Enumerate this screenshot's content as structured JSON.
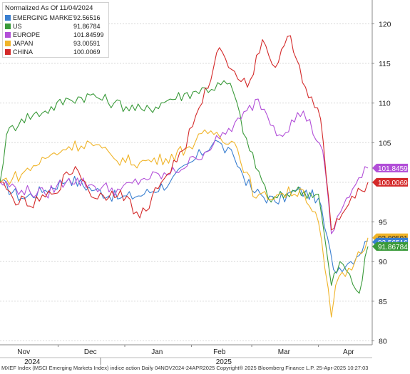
{
  "chart_data": {
    "type": "line",
    "title": "Normalized As Of 11/04/2024",
    "y_ticks": [
      "80",
      "85",
      "90",
      "95",
      "100",
      "105",
      "110",
      "115",
      "120"
    ],
    "ylim": [
      79.5,
      123
    ],
    "x_start": "2024-11-04",
    "x_end": "2025-04-24",
    "x_month_labels": [
      {
        "label": "Nov",
        "date": "2024-11-15"
      },
      {
        "label": "Dec",
        "date": "2024-12-16"
      },
      {
        "label": "Jan",
        "date": "2025-01-16"
      },
      {
        "label": "Feb",
        "date": "2025-02-14"
      },
      {
        "label": "Mar",
        "date": "2025-03-16"
      },
      {
        "label": "Apr",
        "date": "2025-04-15"
      }
    ],
    "x_year_labels": [
      {
        "label": "2024",
        "date": "2024-11-19"
      },
      {
        "label": "2025",
        "date": "2025-02-16"
      }
    ],
    "series": [
      {
        "name": "EMERGING MARKET",
        "legend_value": "92.56516",
        "color": "#3a7fd0",
        "x": [
          "2024-11-04",
          "2024-11-14",
          "2024-11-25",
          "2024-12-06",
          "2024-12-18",
          "2024-12-30",
          "2025-01-10",
          "2025-01-22",
          "2025-02-03",
          "2025-02-12",
          "2025-02-21",
          "2025-03-01",
          "2025-03-12",
          "2025-03-22",
          "2025-04-01",
          "2025-04-08",
          "2025-04-16",
          "2025-04-24"
        ],
        "values": [
          100,
          98,
          99,
          100.5,
          99,
          98,
          98.5,
          100,
          103,
          105.3,
          103,
          99,
          97.5,
          99,
          98,
          89,
          90,
          92.6
        ]
      },
      {
        "name": "US",
        "legend_value": "91.86784",
        "color": "#3a9a3a",
        "x": [
          "2024-11-04",
          "2024-11-07",
          "2024-11-14",
          "2024-11-25",
          "2024-12-06",
          "2024-12-16",
          "2024-12-27",
          "2025-01-10",
          "2025-01-22",
          "2025-02-03",
          "2025-02-19",
          "2025-02-28",
          "2025-03-10",
          "2025-03-20",
          "2025-04-01",
          "2025-04-07",
          "2025-04-11",
          "2025-04-20",
          "2025-04-24"
        ],
        "values": [
          100,
          106,
          108,
          109,
          110.5,
          111,
          110,
          109,
          110.5,
          111.5,
          112.5,
          104,
          97.5,
          99,
          98.5,
          87,
          90,
          86,
          91.9
        ]
      },
      {
        "name": "EUROPE",
        "legend_value": "101.84599",
        "color": "#b24fd8",
        "x": [
          "2024-11-04",
          "2024-11-14",
          "2024-11-25",
          "2024-12-06",
          "2024-12-18",
          "2024-12-30",
          "2025-01-10",
          "2025-01-22",
          "2025-02-03",
          "2025-02-14",
          "2025-02-24",
          "2025-03-04",
          "2025-03-14",
          "2025-03-25",
          "2025-04-03",
          "2025-04-07",
          "2025-04-14",
          "2025-04-24"
        ],
        "values": [
          100,
          99,
          98.5,
          100.5,
          99.5,
          99,
          100.5,
          101,
          103,
          105.5,
          108,
          110.5,
          106,
          109,
          104,
          93.5,
          98,
          101.8
        ]
      },
      {
        "name": "JAPAN",
        "legend_value": "93.00591",
        "color": "#f0b429",
        "x": [
          "2024-11-04",
          "2024-11-14",
          "2024-11-25",
          "2024-12-06",
          "2024-12-16",
          "2024-12-27",
          "2025-01-08",
          "2025-01-20",
          "2025-01-31",
          "2025-02-10",
          "2025-02-21",
          "2025-03-03",
          "2025-03-14",
          "2025-03-25",
          "2025-04-01",
          "2025-04-07",
          "2025-04-09",
          "2025-04-18",
          "2025-04-24"
        ],
        "values": [
          100,
          101,
          103,
          104.5,
          105,
          103,
          102.5,
          103,
          104.5,
          106.5,
          105,
          98,
          98.5,
          99,
          95,
          83,
          87,
          90,
          93
        ]
      },
      {
        "name": "CHINA",
        "legend_value": "100.0069",
        "color": "#d42a2a",
        "x": [
          "2024-11-04",
          "2024-11-10",
          "2024-11-18",
          "2024-11-28",
          "2024-12-09",
          "2024-12-18",
          "2024-12-30",
          "2025-01-08",
          "2025-01-18",
          "2025-01-28",
          "2025-02-06",
          "2025-02-14",
          "2025-02-21",
          "2025-02-27",
          "2025-03-06",
          "2025-03-12",
          "2025-03-19",
          "2025-03-26",
          "2025-04-02",
          "2025-04-07",
          "2025-04-12",
          "2025-04-18",
          "2025-04-24"
        ],
        "values": [
          100,
          98,
          97,
          98.5,
          102,
          98,
          99,
          95.5,
          100,
          104,
          110,
          117,
          114,
          112,
          118,
          114.5,
          118.5,
          112,
          108,
          94,
          96,
          98,
          100
        ]
      }
    ]
  },
  "footer": {
    "text": "MXEF Index (MSCI Emerging Markets Index) indice action  Daily 04NOV2024-24APR2025 Copyright® 2025 Bloomberg Finance L.P. 25-Apr-2025 10:27:03"
  }
}
